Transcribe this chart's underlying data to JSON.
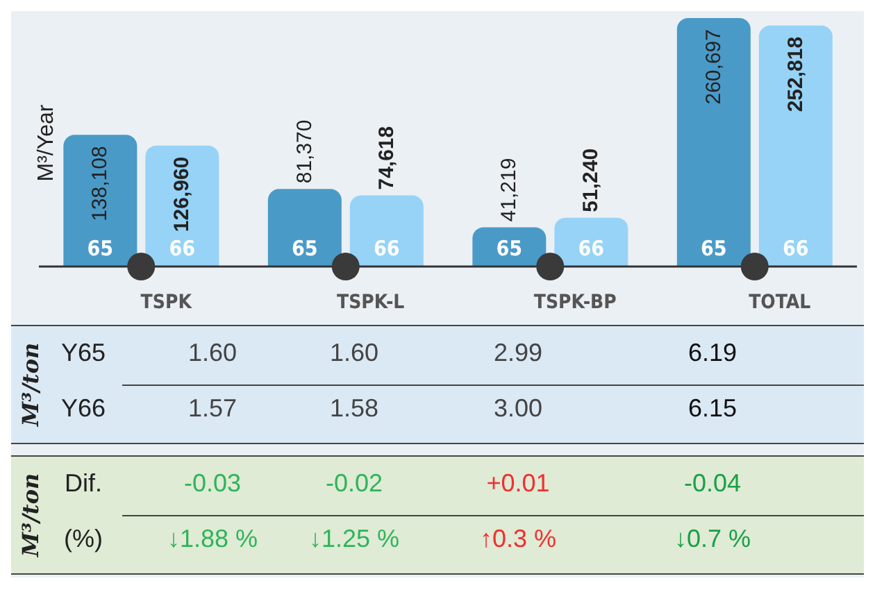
{
  "chart_data": [
    {
      "type": "bar",
      "ylabel": "M³/Year",
      "categories": [
        "TSPK",
        "TSPK-L",
        "TSPK-BP",
        "TOTAL"
      ],
      "series": [
        {
          "name": "65",
          "color": "#4a9ac8",
          "values": [
            138108,
            81370,
            41219,
            260697
          ],
          "value_labels": [
            "138,108",
            "81,370",
            "41,219",
            "260,697"
          ]
        },
        {
          "name": "66",
          "color": "#96d3f7",
          "values": [
            126960,
            74618,
            51240,
            252818
          ],
          "value_labels": [
            "126,960",
            "74,618",
            "51,240",
            "252,818"
          ]
        }
      ]
    },
    {
      "type": "other",
      "ylabel": "M³/ton",
      "annotations": [
        "Y65",
        "1.60",
        "1.60",
        "2.99",
        "6.19",
        "Y66",
        "1.57",
        "1.58",
        "3.00",
        "6.15"
      ],
      "colors": [
        "#222222",
        "#444444",
        "#444444",
        "#444444",
        "#111111",
        "#222222",
        "#444444",
        "#444444",
        "#444444",
        "#111111"
      ]
    },
    {
      "type": "other",
      "ylabel": "M³/ton",
      "annotations": [
        "Dif.",
        "-0.03",
        "-0.02",
        "+0.01",
        "-0.04",
        "(%)",
        "↓1.88 %",
        "↓1.25 %",
        "↑0.3 %",
        "↓0.7 %"
      ],
      "colors": [
        "#222222",
        "#2fb45a",
        "#2fb45a",
        "#f03030",
        "#1aa048",
        "#222222",
        "#2fb45a",
        "#2fb45a",
        "#f03030",
        "#1aa048"
      ]
    }
  ]
}
